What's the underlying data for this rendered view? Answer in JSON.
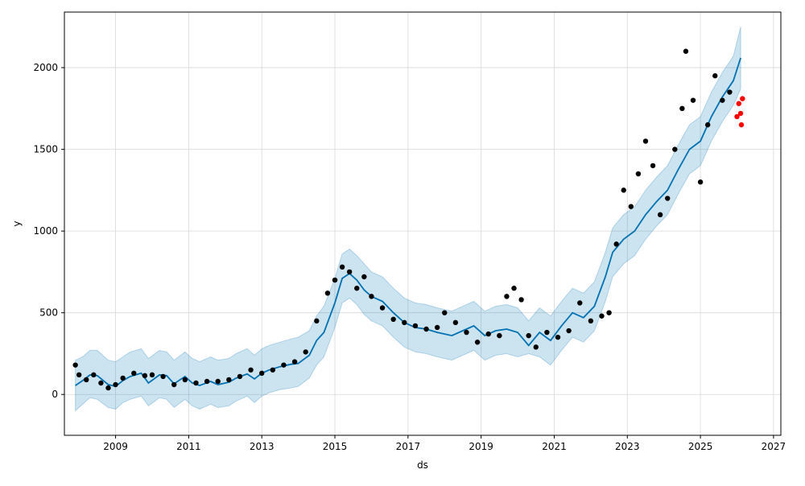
{
  "chart_data": {
    "type": "line",
    "xlabel": "ds",
    "ylabel": "y",
    "xlim": [
      2007.6,
      2027.2
    ],
    "ylim": [
      -250,
      2340
    ],
    "x_ticks": [
      2009,
      2011,
      2013,
      2015,
      2017,
      2019,
      2021,
      2023,
      2025,
      2027
    ],
    "y_ticks": [
      0,
      500,
      1000,
      1500,
      2000
    ],
    "x_tick_labels": [
      "2009",
      "2011",
      "2013",
      "2015",
      "2017",
      "2019",
      "2021",
      "2023",
      "2025",
      "2027"
    ],
    "y_tick_labels": [
      "0",
      "500",
      "1000",
      "1500",
      "2000"
    ],
    "grid": true,
    "colors": {
      "forecast_line": "#0072B2",
      "uncertainty_band": "#0072B2",
      "observed_points": "#000000",
      "test_points": "#ff0000",
      "grid": "#d9d9d9"
    },
    "series": [
      {
        "kind": "forecast",
        "x": [
          2007.9,
          2008.1,
          2008.3,
          2008.5,
          2008.8,
          2009.0,
          2009.2,
          2009.4,
          2009.7,
          2009.9,
          2010.2,
          2010.4,
          2010.6,
          2010.9,
          2011.1,
          2011.3,
          2011.6,
          2011.8,
          2012.1,
          2012.3,
          2012.6,
          2012.8,
          2013.0,
          2013.2,
          2013.5,
          2013.8,
          2014.0,
          2014.3,
          2014.5,
          2014.7,
          2015.0,
          2015.2,
          2015.4,
          2015.6,
          2015.8,
          2016.0,
          2016.3,
          2016.6,
          2016.9,
          2017.2,
          2017.5,
          2017.8,
          2018.2,
          2018.5,
          2018.8,
          2019.1,
          2019.4,
          2019.7,
          2020.0,
          2020.3,
          2020.6,
          2020.9,
          2021.2,
          2021.5,
          2021.8,
          2022.1,
          2022.4,
          2022.6,
          2022.9,
          2023.2,
          2023.5,
          2023.8,
          2024.1,
          2024.4,
          2024.7,
          2025.0,
          2025.3,
          2025.6,
          2025.9,
          2026.1
        ],
        "y": [
          55,
          85,
          120,
          115,
          60,
          50,
          85,
          110,
          130,
          70,
          120,
          115,
          65,
          110,
          70,
          55,
          80,
          60,
          75,
          100,
          125,
          95,
          130,
          150,
          170,
          185,
          190,
          240,
          330,
          380,
          560,
          710,
          740,
          700,
          640,
          600,
          570,
          500,
          440,
          410,
          400,
          380,
          360,
          390,
          420,
          360,
          390,
          400,
          380,
          300,
          380,
          330,
          420,
          500,
          470,
          540,
          720,
          870,
          950,
          1000,
          1100,
          1180,
          1250,
          1380,
          1500,
          1550,
          1700,
          1820,
          1920,
          2060
        ],
        "lower": [
          -100,
          -60,
          -20,
          -30,
          -80,
          -90,
          -50,
          -30,
          -10,
          -70,
          -20,
          -30,
          -80,
          -30,
          -70,
          -90,
          -60,
          -80,
          -70,
          -40,
          -10,
          -50,
          -10,
          10,
          30,
          40,
          50,
          100,
          180,
          230,
          410,
          560,
          590,
          550,
          490,
          450,
          420,
          350,
          290,
          260,
          250,
          230,
          210,
          240,
          270,
          210,
          240,
          250,
          230,
          250,
          230,
          180,
          270,
          350,
          320,
          390,
          570,
          720,
          800,
          850,
          950,
          1030,
          1100,
          1230,
          1350,
          1400,
          1550,
          1670,
          1770,
          1870
        ],
        "upper": [
          210,
          230,
          270,
          270,
          210,
          200,
          230,
          260,
          280,
          220,
          270,
          260,
          210,
          260,
          220,
          200,
          230,
          210,
          220,
          250,
          280,
          240,
          280,
          300,
          320,
          340,
          350,
          390,
          480,
          540,
          710,
          860,
          890,
          850,
          800,
          750,
          720,
          650,
          590,
          560,
          550,
          530,
          510,
          540,
          570,
          510,
          540,
          550,
          530,
          450,
          530,
          480,
          570,
          650,
          620,
          690,
          870,
          1020,
          1100,
          1150,
          1250,
          1330,
          1400,
          1530,
          1650,
          1700,
          1850,
          1970,
          2070,
          2250
        ]
      },
      {
        "kind": "observed",
        "x": [
          2007.9,
          2008.0,
          2008.2,
          2008.4,
          2008.6,
          2008.8,
          2009.0,
          2009.2,
          2009.5,
          2009.8,
          2010.0,
          2010.3,
          2010.6,
          2010.9,
          2011.2,
          2011.5,
          2011.8,
          2012.1,
          2012.4,
          2012.7,
          2013.0,
          2013.3,
          2013.6,
          2013.9,
          2014.2,
          2014.5,
          2014.8,
          2015.0,
          2015.2,
          2015.4,
          2015.6,
          2015.8,
          2016.0,
          2016.3,
          2016.6,
          2016.9,
          2017.2,
          2017.5,
          2017.8,
          2018.0,
          2018.3,
          2018.6,
          2018.9,
          2019.2,
          2019.5,
          2019.7,
          2019.9,
          2020.1,
          2020.3,
          2020.5,
          2020.8,
          2021.1,
          2021.4,
          2021.7,
          2022.0,
          2022.3,
          2022.5,
          2022.7,
          2022.9,
          2023.1,
          2023.3,
          2023.5,
          2023.7,
          2023.9,
          2024.1,
          2024.3,
          2024.5,
          2024.6,
          2024.8,
          2025.0,
          2025.2,
          2025.4,
          2025.6,
          2025.8
        ],
        "y": [
          180,
          120,
          90,
          120,
          70,
          40,
          60,
          100,
          130,
          115,
          120,
          110,
          60,
          90,
          70,
          80,
          80,
          90,
          110,
          150,
          130,
          150,
          180,
          200,
          260,
          450,
          620,
          700,
          780,
          750,
          650,
          720,
          600,
          530,
          460,
          440,
          420,
          400,
          410,
          500,
          440,
          380,
          320,
          370,
          360,
          600,
          650,
          580,
          360,
          290,
          380,
          350,
          390,
          560,
          450,
          480,
          500,
          920,
          1250,
          1150,
          1350,
          1550,
          1400,
          1100,
          1200,
          1500,
          1750,
          2100,
          1800,
          1300,
          1650,
          1950,
          1800,
          1850
        ]
      },
      {
        "kind": "test",
        "x": [
          2026.0,
          2026.05,
          2026.1,
          2026.12,
          2026.15
        ],
        "y": [
          1700,
          1780,
          1720,
          1650,
          1810
        ]
      }
    ]
  }
}
